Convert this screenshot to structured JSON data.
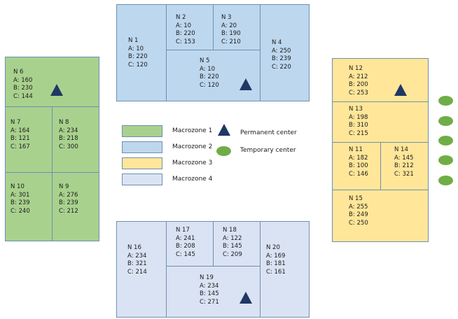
{
  "nodes": {
    "n1": {
      "name": "N 1",
      "a": "A: 10",
      "b": "B: 220",
      "c": "C: 120"
    },
    "n2": {
      "name": "N 2",
      "a": "A: 10",
      "b": "B: 220",
      "c": "C: 153"
    },
    "n3": {
      "name": "N 3",
      "a": "A: 20",
      "b": "B: 190",
      "c": "C: 210"
    },
    "n4": {
      "name": "N 4",
      "a": "A: 250",
      "b": "B: 239",
      "c": "C: 220"
    },
    "n5": {
      "name": "N 5",
      "a": "A: 10",
      "b": "B: 220",
      "c": "C: 120"
    },
    "n6": {
      "name": "N 6",
      "a": "A: 160",
      "b": "B: 230",
      "c": "C: 144"
    },
    "n7": {
      "name": "N 7",
      "a": "A: 164",
      "b": "B: 121",
      "c": "C: 167"
    },
    "n8": {
      "name": "N 8",
      "a": "A: 234",
      "b": "B: 218",
      "c": "C: 300"
    },
    "n9": {
      "name": "N 9",
      "a": "A: 276",
      "b": "B: 239",
      "c": "C: 212"
    },
    "n10": {
      "name": "N 10",
      "a": "A: 301",
      "b": "B: 239",
      "c": "C: 240"
    },
    "n11": {
      "name": "N 11",
      "a": "A: 182",
      "b": "B: 100",
      "c": "C: 146"
    },
    "n12": {
      "name": "N 12",
      "a": "A: 212",
      "b": "B: 200",
      "c": "C: 253"
    },
    "n13": {
      "name": "N 13",
      "a": "A: 198",
      "b": "B: 310",
      "c": "C: 215"
    },
    "n14": {
      "name": "N 14",
      "a": "A: 145",
      "b": "B: 212",
      "c": "C: 321"
    },
    "n15": {
      "name": "N 15",
      "a": "A: 255",
      "b": "B: 249",
      "c": "C: 250"
    },
    "n16": {
      "name": "N 16",
      "a": "A: 234",
      "b": "B: 321",
      "c": "C: 214"
    },
    "n17": {
      "name": "N 17",
      "a": "A: 241",
      "b": "B: 208",
      "c": "C: 145"
    },
    "n18": {
      "name": "N 18",
      "a": "A: 122",
      "b": "B: 145",
      "c": "C: 209"
    },
    "n19": {
      "name": "N 19",
      "a": "A: 234",
      "b": "B: 145",
      "c": "C: 271"
    },
    "n20": {
      "name": "N 20",
      "a": "A: 169",
      "b": "B: 181",
      "c": "C: 161"
    }
  },
  "legend": {
    "macrozone1": "Macrozone 1",
    "macrozone2": "Macrozone 2",
    "macrozone3": "Macrozone 3",
    "macrozone4": "Macrozone 4",
    "permanent": "Permanent center",
    "temporary": "Temporary center"
  },
  "colors": {
    "macrozone1": "#a9d18e",
    "macrozone2": "#bdd7ee",
    "macrozone3": "#ffe699",
    "macrozone4": "#dae3f3",
    "permanent_center": "#1f3864",
    "temporary_center": "#70ad47"
  }
}
